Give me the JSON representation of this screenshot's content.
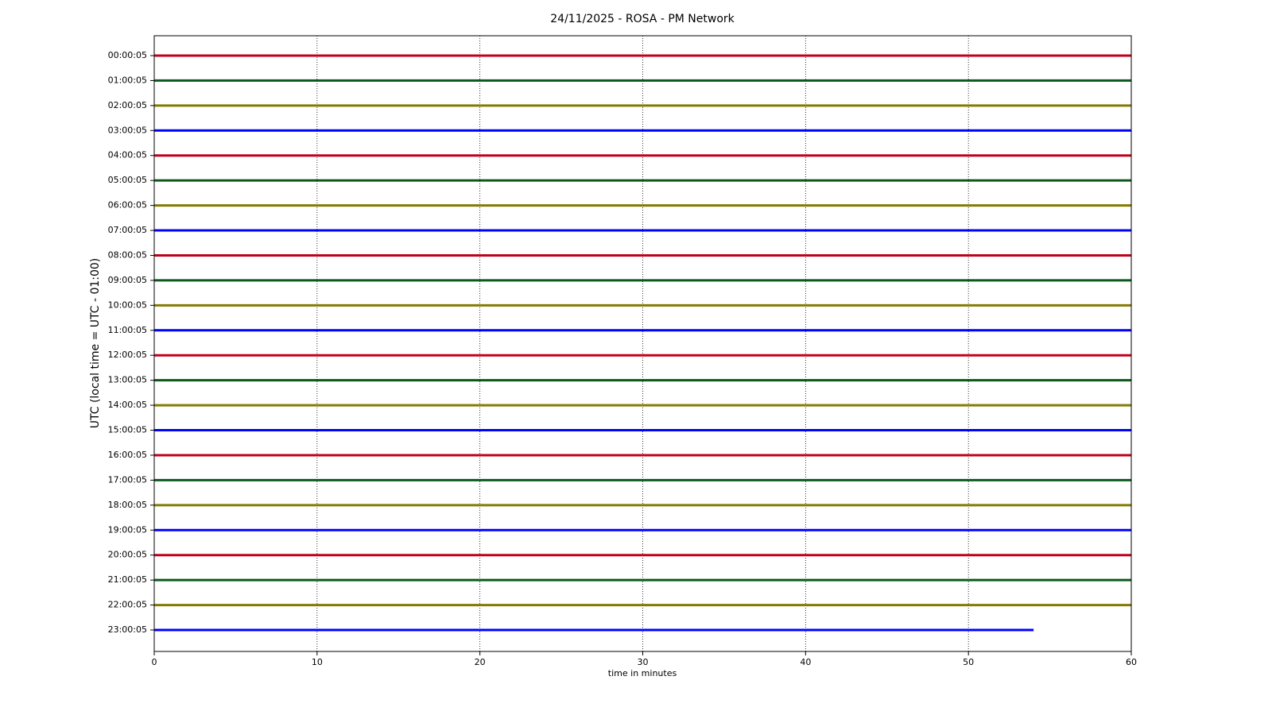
{
  "chart_data": {
    "type": "helicorder",
    "title": "24/11/2025 - ROSA - PM Network",
    "x_label": "time in minutes",
    "y_label": "UTC (local time = UTC - 01:00)",
    "xlim": [
      0,
      60
    ],
    "xticks": [
      0,
      10,
      20,
      30,
      40,
      50,
      60
    ],
    "grid": "x",
    "series": [
      {
        "name": "00:00:05",
        "color": "#c0001a",
        "x": [
          0,
          60
        ]
      },
      {
        "name": "01:00:05",
        "color": "#0b5a1c",
        "x": [
          0,
          60
        ]
      },
      {
        "name": "02:00:05",
        "color": "#857a00",
        "x": [
          0,
          60
        ]
      },
      {
        "name": "03:00:05",
        "color": "#0000ff",
        "x": [
          0,
          60
        ]
      },
      {
        "name": "04:00:05",
        "color": "#c0001a",
        "x": [
          0,
          60
        ]
      },
      {
        "name": "05:00:05",
        "color": "#0b5a1c",
        "x": [
          0,
          60
        ]
      },
      {
        "name": "06:00:05",
        "color": "#857a00",
        "x": [
          0,
          60
        ]
      },
      {
        "name": "07:00:05",
        "color": "#0000ff",
        "x": [
          0,
          60
        ]
      },
      {
        "name": "08:00:05",
        "color": "#c0001a",
        "x": [
          0,
          60
        ]
      },
      {
        "name": "09:00:05",
        "color": "#0b5a1c",
        "x": [
          0,
          60
        ]
      },
      {
        "name": "10:00:05",
        "color": "#857a00",
        "x": [
          0,
          60
        ]
      },
      {
        "name": "11:00:05",
        "color": "#0000ff",
        "x": [
          0,
          60
        ]
      },
      {
        "name": "12:00:05",
        "color": "#c0001a",
        "x": [
          0,
          60
        ]
      },
      {
        "name": "13:00:05",
        "color": "#0b5a1c",
        "x": [
          0,
          60
        ]
      },
      {
        "name": "14:00:05",
        "color": "#857a00",
        "x": [
          0,
          60
        ]
      },
      {
        "name": "15:00:05",
        "color": "#0000ff",
        "x": [
          0,
          60
        ]
      },
      {
        "name": "16:00:05",
        "color": "#c0001a",
        "x": [
          0,
          60
        ]
      },
      {
        "name": "17:00:05",
        "color": "#0b5a1c",
        "x": [
          0,
          60
        ]
      },
      {
        "name": "18:00:05",
        "color": "#857a00",
        "x": [
          0,
          60
        ]
      },
      {
        "name": "19:00:05",
        "color": "#0000ff",
        "x": [
          0,
          60
        ]
      },
      {
        "name": "20:00:05",
        "color": "#c0001a",
        "x": [
          0,
          60
        ]
      },
      {
        "name": "21:00:05",
        "color": "#0b5a1c",
        "x": [
          0,
          60
        ]
      },
      {
        "name": "22:00:05",
        "color": "#857a00",
        "x": [
          0,
          60
        ]
      },
      {
        "name": "23:00:05",
        "color": "#0000ff",
        "x": [
          0,
          54
        ]
      }
    ]
  }
}
